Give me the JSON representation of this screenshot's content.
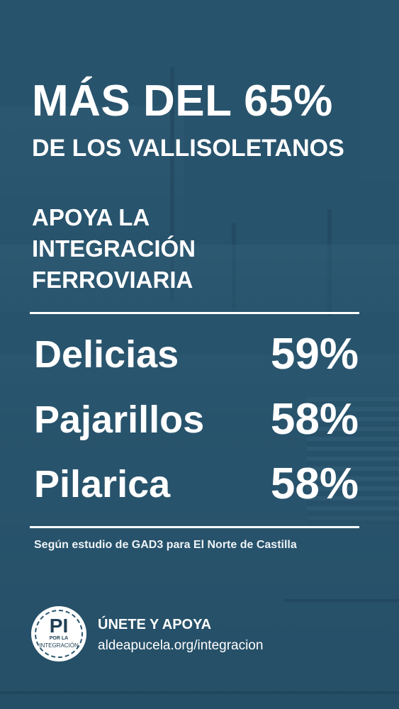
{
  "headline": {
    "line1": "MÁS DEL 65%",
    "line2": "DE LOS VALLISOLETANOS"
  },
  "subhead": {
    "lines": [
      "APOYA LA",
      "INTEGRACIÓN",
      "FERROVIARIA"
    ]
  },
  "stats": [
    {
      "name": "Delicias",
      "value": "59%"
    },
    {
      "name": "Pajarillos",
      "value": "58%"
    },
    {
      "name": "Pilarica",
      "value": "58%"
    }
  ],
  "source": "Según estudio de GAD3 para El Norte de Castilla",
  "logo": {
    "mark": "PI",
    "small_top": "POR LA",
    "small_bottom": "INTEGRACIÓN"
  },
  "cta": {
    "title": "ÚNETE Y APOYA",
    "url": "aldeapucela.org/integracion"
  },
  "colors": {
    "overlay": "#26526c",
    "text": "#ffffff"
  }
}
